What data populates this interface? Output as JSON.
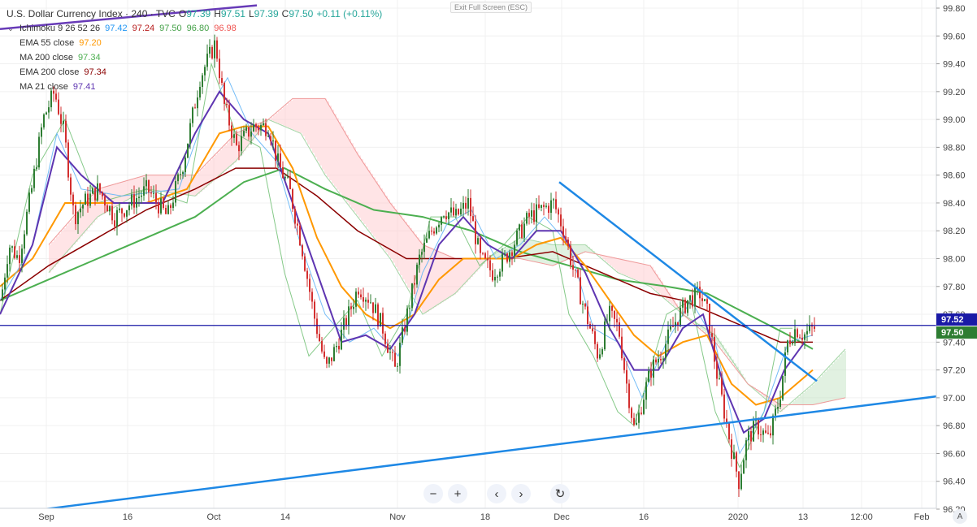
{
  "header": {
    "symbol": "U.S. Dollar Currency Index · 240 · TVC",
    "o_label": "O",
    "o_val": "97.39",
    "h_label": "H",
    "h_val": "97.51",
    "l_label": "L",
    "l_val": "97.39",
    "c_label": "C",
    "c_val": "97.50",
    "change": "+0.11 (+0.11%)"
  },
  "exit_fullscreen": "Exit Full Screen (ESC)",
  "indicators": [
    {
      "name": "Ichimoku 9 26 52 26",
      "values": [
        "97.42",
        "97.24",
        "97.50",
        "96.80",
        "96.98"
      ],
      "colors": [
        "#2196f3",
        "#b71c1c",
        "#43a047",
        "#43a047",
        "#ef5350"
      ]
    },
    {
      "name": "EMA 55 close",
      "values": [
        "97.20"
      ],
      "colors": [
        "#ff9800"
      ]
    },
    {
      "name": "MA 200 close",
      "values": [
        "97.34"
      ],
      "colors": [
        "#4caf50"
      ]
    },
    {
      "name": "EMA 200 close",
      "values": [
        "97.34"
      ],
      "colors": [
        "#8b0000"
      ]
    },
    {
      "name": "MA 21 close",
      "values": [
        "97.41"
      ],
      "colors": [
        "#5e35b1"
      ]
    }
  ],
  "price_line": {
    "value": "97.52",
    "color": "#1a1aa6"
  },
  "last_price": {
    "value": "97.50",
    "color": "#2e7d32"
  },
  "controls": [
    "−",
    "+",
    "‹",
    "›",
    "↻"
  ],
  "corner_button": "A",
  "chart_data": {
    "type": "candlestick",
    "y_axis": {
      "min": 96.2,
      "max": 99.8,
      "ticks": [
        "96.20",
        "96.40",
        "96.60",
        "96.80",
        "97.00",
        "97.20",
        "97.40",
        "97.60",
        "97.80",
        "98.00",
        "98.20",
        "98.40",
        "98.60",
        "98.80",
        "99.00",
        "99.20",
        "99.40",
        "99.60",
        "99.80"
      ]
    },
    "x_axis_labels": [
      "Sep",
      "16",
      "Oct",
      "14",
      "Nov",
      "18",
      "Dec",
      "16",
      "2020",
      "13",
      "12:00",
      "Feb"
    ],
    "price_path": [
      [
        0,
        97.7
      ],
      [
        10,
        98.1
      ],
      [
        22,
        98.0
      ],
      [
        38,
        98.5
      ],
      [
        52,
        99.0
      ],
      [
        66,
        99.2
      ],
      [
        78,
        98.9
      ],
      [
        90,
        98.3
      ],
      [
        102,
        98.4
      ],
      [
        120,
        98.5
      ],
      [
        140,
        98.3
      ],
      [
        160,
        98.4
      ],
      [
        180,
        98.5
      ],
      [
        205,
        98.3
      ],
      [
        225,
        98.7
      ],
      [
        245,
        99.3
      ],
      [
        264,
        99.55
      ],
      [
        275,
        99.1
      ],
      [
        290,
        98.8
      ],
      [
        310,
        98.95
      ],
      [
        330,
        98.95
      ],
      [
        340,
        98.7
      ],
      [
        355,
        98.5
      ],
      [
        370,
        98.1
      ],
      [
        385,
        97.6
      ],
      [
        400,
        97.2
      ],
      [
        415,
        97.4
      ],
      [
        428,
        97.6
      ],
      [
        440,
        97.8
      ],
      [
        455,
        97.7
      ],
      [
        470,
        97.5
      ],
      [
        485,
        97.2
      ],
      [
        500,
        97.6
      ],
      [
        515,
        98.0
      ],
      [
        530,
        98.2
      ],
      [
        545,
        98.35
      ],
      [
        560,
        98.3
      ],
      [
        575,
        98.4
      ],
      [
        590,
        98.0
      ],
      [
        605,
        97.9
      ],
      [
        620,
        98.0
      ],
      [
        635,
        98.15
      ],
      [
        650,
        98.3
      ],
      [
        665,
        98.35
      ],
      [
        680,
        98.4
      ],
      [
        693,
        98.2
      ],
      [
        705,
        97.9
      ],
      [
        720,
        97.6
      ],
      [
        735,
        97.3
      ],
      [
        748,
        97.6
      ],
      [
        760,
        97.5
      ],
      [
        770,
        97.1
      ],
      [
        780,
        96.75
      ],
      [
        790,
        97.0
      ],
      [
        800,
        97.2
      ],
      [
        815,
        97.35
      ],
      [
        830,
        97.55
      ],
      [
        845,
        97.7
      ],
      [
        860,
        97.75
      ],
      [
        870,
        97.6
      ],
      [
        880,
        97.2
      ],
      [
        890,
        96.9
      ],
      [
        900,
        96.6
      ],
      [
        908,
        96.4
      ],
      [
        918,
        96.7
      ],
      [
        930,
        96.8
      ],
      [
        945,
        96.7
      ],
      [
        958,
        97.0
      ],
      [
        968,
        97.4
      ],
      [
        978,
        97.5
      ],
      [
        988,
        97.45
      ],
      [
        1000,
        97.5
      ]
    ],
    "indicator_lines": {
      "ma21": [
        [
          0,
          97.6
        ],
        [
          40,
          98.1
        ],
        [
          70,
          98.8
        ],
        [
          100,
          98.6
        ],
        [
          140,
          98.4
        ],
        [
          200,
          98.4
        ],
        [
          240,
          98.9
        ],
        [
          270,
          99.2
        ],
        [
          300,
          99.0
        ],
        [
          330,
          98.9
        ],
        [
          360,
          98.4
        ],
        [
          390,
          97.9
        ],
        [
          420,
          97.4
        ],
        [
          450,
          97.45
        ],
        [
          480,
          97.35
        ],
        [
          510,
          97.6
        ],
        [
          540,
          98.1
        ],
        [
          570,
          98.3
        ],
        [
          600,
          98.1
        ],
        [
          630,
          98.0
        ],
        [
          660,
          98.2
        ],
        [
          690,
          98.2
        ],
        [
          720,
          97.9
        ],
        [
          750,
          97.5
        ],
        [
          780,
          97.2
        ],
        [
          810,
          97.2
        ],
        [
          840,
          97.5
        ],
        [
          865,
          97.6
        ],
        [
          890,
          97.1
        ],
        [
          915,
          96.75
        ],
        [
          940,
          96.85
        ],
        [
          965,
          97.2
        ],
        [
          990,
          97.4
        ]
      ],
      "ema55": [
        [
          0,
          97.8
        ],
        [
          40,
          98.0
        ],
        [
          80,
          98.4
        ],
        [
          120,
          98.4
        ],
        [
          180,
          98.4
        ],
        [
          230,
          98.5
        ],
        [
          270,
          98.9
        ],
        [
          300,
          98.95
        ],
        [
          330,
          98.95
        ],
        [
          360,
          98.65
        ],
        [
          390,
          98.15
        ],
        [
          420,
          97.8
        ],
        [
          450,
          97.6
        ],
        [
          480,
          97.5
        ],
        [
          510,
          97.6
        ],
        [
          540,
          97.85
        ],
        [
          570,
          98.0
        ],
        [
          600,
          98.0
        ],
        [
          630,
          98.0
        ],
        [
          660,
          98.1
        ],
        [
          690,
          98.15
        ],
        [
          720,
          97.95
        ],
        [
          750,
          97.7
        ],
        [
          780,
          97.45
        ],
        [
          810,
          97.3
        ],
        [
          840,
          97.4
        ],
        [
          870,
          97.45
        ],
        [
          900,
          97.1
        ],
        [
          930,
          96.95
        ],
        [
          960,
          97.0
        ],
        [
          1000,
          97.2
        ]
      ],
      "ema200": [
        [
          0,
          97.7
        ],
        [
          60,
          97.95
        ],
        [
          120,
          98.15
        ],
        [
          180,
          98.35
        ],
        [
          240,
          98.5
        ],
        [
          290,
          98.65
        ],
        [
          340,
          98.65
        ],
        [
          390,
          98.45
        ],
        [
          440,
          98.2
        ],
        [
          500,
          98.0
        ],
        [
          560,
          98.0
        ],
        [
          620,
          98.0
        ],
        [
          680,
          98.05
        ],
        [
          720,
          97.95
        ],
        [
          760,
          97.85
        ],
        [
          800,
          97.75
        ],
        [
          840,
          97.7
        ],
        [
          880,
          97.6
        ],
        [
          920,
          97.5
        ],
        [
          960,
          97.4
        ],
        [
          1000,
          97.4
        ]
      ],
      "ma200": [
        [
          0,
          97.7
        ],
        [
          60,
          97.85
        ],
        [
          120,
          98.0
        ],
        [
          180,
          98.15
        ],
        [
          240,
          98.3
        ],
        [
          300,
          98.55
        ],
        [
          350,
          98.65
        ],
        [
          400,
          98.5
        ],
        [
          460,
          98.35
        ],
        [
          520,
          98.3
        ],
        [
          580,
          98.2
        ],
        [
          640,
          98.05
        ],
        [
          700,
          97.95
        ],
        [
          760,
          97.85
        ],
        [
          820,
          97.8
        ],
        [
          870,
          97.75
        ],
        [
          920,
          97.6
        ],
        [
          970,
          97.45
        ],
        [
          1000,
          97.35
        ]
      ],
      "tenkan": [
        [
          0,
          97.7
        ],
        [
          40,
          98.1
        ],
        [
          70,
          98.9
        ],
        [
          100,
          98.5
        ],
        [
          150,
          98.45
        ],
        [
          220,
          98.5
        ],
        [
          250,
          99.0
        ],
        [
          280,
          99.3
        ],
        [
          310,
          98.9
        ],
        [
          340,
          98.7
        ],
        [
          370,
          98.1
        ],
        [
          400,
          97.6
        ],
        [
          430,
          97.4
        ],
        [
          460,
          97.5
        ],
        [
          490,
          97.3
        ],
        [
          520,
          97.9
        ],
        [
          550,
          98.25
        ],
        [
          580,
          98.35
        ],
        [
          610,
          98.0
        ],
        [
          640,
          98.1
        ],
        [
          670,
          98.3
        ],
        [
          700,
          98.1
        ],
        [
          730,
          97.5
        ],
        [
          760,
          97.4
        ],
        [
          790,
          97.0
        ],
        [
          820,
          97.4
        ],
        [
          850,
          97.7
        ],
        [
          880,
          97.4
        ],
        [
          910,
          96.6
        ],
        [
          940,
          96.9
        ],
        [
          970,
          97.4
        ],
        [
          1000,
          97.45
        ]
      ],
      "chikou": [
        [
          0,
          97.6
        ],
        [
          40,
          98.6
        ],
        [
          80,
          99.0
        ],
        [
          120,
          98.4
        ],
        [
          180,
          98.5
        ],
        [
          230,
          98.4
        ],
        [
          260,
          99.4
        ],
        [
          290,
          98.9
        ],
        [
          320,
          98.8
        ],
        [
          350,
          97.9
        ],
        [
          380,
          97.3
        ],
        [
          410,
          97.5
        ],
        [
          440,
          97.7
        ],
        [
          470,
          97.3
        ],
        [
          500,
          97.6
        ],
        [
          530,
          98.3
        ],
        [
          560,
          98.3
        ],
        [
          590,
          97.95
        ],
        [
          620,
          98.1
        ],
        [
          650,
          98.3
        ],
        [
          680,
          98.2
        ],
        [
          700,
          97.6
        ],
        [
          730,
          97.3
        ],
        [
          760,
          96.9
        ],
        [
          780,
          96.8
        ],
        [
          820,
          97.6
        ],
        [
          850,
          97.7
        ],
        [
          880,
          96.9
        ],
        [
          910,
          96.5
        ],
        [
          940,
          96.9
        ],
        [
          960,
          97.5
        ],
        [
          975,
          97.5
        ]
      ]
    },
    "cloud": {
      "span_a": [
        [
          60,
          97.9
        ],
        [
          120,
          98.3
        ],
        [
          180,
          98.5
        ],
        [
          240,
          98.45
        ],
        [
          290,
          98.7
        ],
        [
          330,
          99.0
        ],
        [
          370,
          98.9
        ],
        [
          400,
          98.6
        ],
        [
          440,
          98.3
        ],
        [
          480,
          98.0
        ],
        [
          520,
          97.6
        ],
        [
          560,
          97.75
        ],
        [
          600,
          98.0
        ],
        [
          640,
          98.15
        ],
        [
          680,
          98.1
        ],
        [
          720,
          98.1
        ],
        [
          760,
          97.9
        ],
        [
          800,
          97.8
        ],
        [
          840,
          97.6
        ],
        [
          880,
          97.45
        ],
        [
          920,
          97.1
        ],
        [
          960,
          96.9
        ],
        [
          1000,
          97.1
        ],
        [
          1040,
          97.35
        ]
      ],
      "span_b": [
        [
          60,
          98.1
        ],
        [
          120,
          98.5
        ],
        [
          180,
          98.6
        ],
        [
          240,
          98.6
        ],
        [
          290,
          98.9
        ],
        [
          330,
          99.0
        ],
        [
          360,
          99.15
        ],
        [
          400,
          99.15
        ],
        [
          440,
          98.75
        ],
        [
          480,
          98.4
        ],
        [
          520,
          98.1
        ],
        [
          560,
          98.0
        ],
        [
          600,
          98.0
        ],
        [
          640,
          98.0
        ],
        [
          680,
          97.95
        ],
        [
          720,
          98.05
        ],
        [
          760,
          98.0
        ],
        [
          800,
          97.95
        ],
        [
          840,
          97.6
        ],
        [
          880,
          97.4
        ],
        [
          920,
          97.1
        ],
        [
          960,
          96.95
        ],
        [
          1000,
          96.95
        ],
        [
          1040,
          97.0
        ]
      ]
    },
    "trendlines": [
      {
        "name": "descending",
        "from": [
          688,
          98.55
        ],
        "to": [
          1005,
          97.12
        ],
        "color": "#1e88e5"
      },
      {
        "name": "ascending",
        "from": [
          28,
          96.18
        ],
        "to": [
          1152,
          97.01
        ],
        "color": "#1e88e5"
      },
      {
        "name": "upper-channel",
        "from": [
          0,
          99.65
        ],
        "to": [
          316,
          99.82
        ],
        "color": "#673ab7"
      }
    ]
  }
}
